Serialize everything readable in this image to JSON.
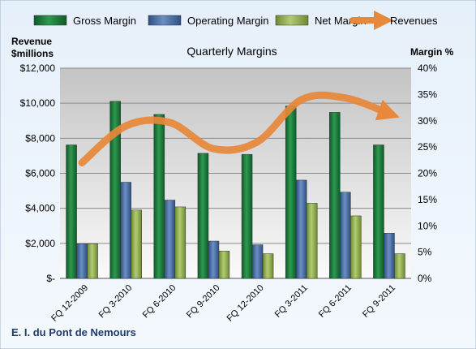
{
  "chart_data": {
    "type": "bar",
    "title": "Quarterly Margins",
    "company": "E. I. du Pont de Nemours",
    "left_axis_title": [
      "Revenue",
      "$millions"
    ],
    "right_axis_title": "Margin %",
    "categories": [
      "FQ 12-2009",
      "FQ 3-2010",
      "FQ 6-2010",
      "FQ 9-2010",
      "FQ 12-2010",
      "FQ 3-2011",
      "FQ 6-2011",
      "FQ 9-2011"
    ],
    "left_ylim": [
      0,
      12000
    ],
    "right_ylim": [
      0,
      40
    ],
    "left_ticks": [
      "$-",
      "$2,000",
      "$4,000",
      "$6,000",
      "$8,000",
      "$10,000",
      "$12,000"
    ],
    "right_ticks": [
      "0%",
      "5%",
      "10%",
      "15%",
      "20%",
      "25%",
      "30%",
      "35%",
      "40%"
    ],
    "grid": true,
    "legend_position": "top",
    "series": [
      {
        "name": "Gross Margin",
        "kind": "bar",
        "axis": "right",
        "color": "#1e7a3c",
        "values": [
          25.4,
          33.7,
          31.2,
          23.8,
          23.6,
          32.8,
          31.6,
          25.4
        ]
      },
      {
        "name": "Operating Margin",
        "kind": "bar",
        "axis": "right",
        "color": "#4a6fa5",
        "values": [
          6.6,
          18.3,
          14.9,
          7.1,
          6.4,
          18.7,
          16.4,
          8.6
        ]
      },
      {
        "name": "Net Margin",
        "kind": "bar",
        "axis": "right",
        "color": "#8fad4f",
        "values": [
          6.6,
          13.0,
          13.6,
          5.2,
          4.7,
          14.3,
          11.9,
          4.7
        ]
      },
      {
        "name": "Revenues",
        "kind": "line",
        "axis": "left",
        "color": "#e8883a",
        "values": [
          6600,
          8700,
          8900,
          7400,
          7800,
          10200,
          10300,
          9400
        ]
      }
    ]
  }
}
